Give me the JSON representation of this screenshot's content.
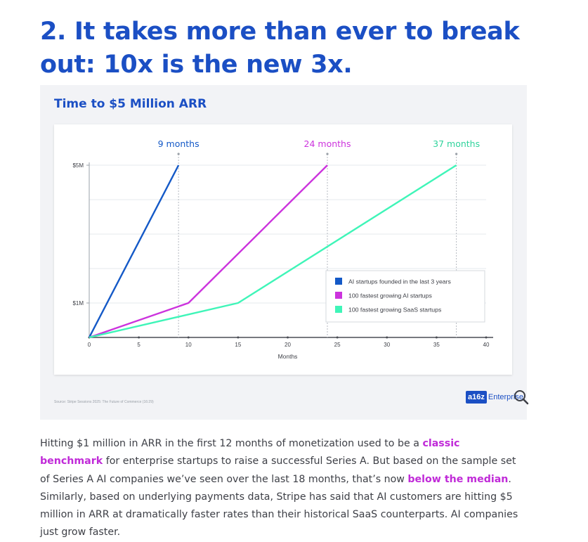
{
  "heading": "2. It takes more than ever to break out: 10x is the new 3x.",
  "chart_data": {
    "type": "line",
    "title": "Time to $5 Million ARR",
    "xlabel": "Months",
    "ylabel": "",
    "xlim": [
      0,
      40
    ],
    "x_ticks": [
      "0",
      "5",
      "10",
      "15",
      "20",
      "25",
      "30",
      "35",
      "40"
    ],
    "y_tick_labels": [
      {
        "label": "$5M",
        "value": 5
      },
      {
        "label": "$1M",
        "value": 1
      }
    ],
    "grid": true,
    "legend_position": "bottom-right",
    "series": [
      {
        "name": "AI startups founded in the last 3 years",
        "color": "#1459c7",
        "points": [
          [
            0,
            0
          ],
          [
            9,
            5
          ]
        ],
        "annotation": "9 months"
      },
      {
        "name": "100 fastest growing AI startups",
        "color": "#cc33dd",
        "points": [
          [
            0,
            0
          ],
          [
            10,
            1
          ],
          [
            24,
            5
          ]
        ],
        "annotation": "24 months"
      },
      {
        "name": "100 fastest growing SaaS startups",
        "color": "#3ff5b8",
        "points": [
          [
            0,
            0
          ],
          [
            15,
            1
          ],
          [
            37,
            5
          ]
        ],
        "annotation": "37 months"
      }
    ]
  },
  "source": "Source: Stripe Sessions 2025: The Future of Commerce (16:29)",
  "logo": {
    "mark": "a16z",
    "word": "Enterprise",
    "icon": "magnifier-icon"
  },
  "body": {
    "p1": "Hitting $1 million in ARR in the first 12 months of monetization used to be a ",
    "link1": "classic benchmark",
    "p2": " for enterprise startups to raise a successful Series A. But based on the sample set of Series A AI companies we’ve seen over the last 18 months, that’s now ",
    "link2": "below the median",
    "p3": ". Similarly, based on underlying payments data, Stripe has said that AI customers are hitting $5 million in ARR at dramatically faster rates than their historical SaaS counterparts. AI companies just grow faster."
  }
}
